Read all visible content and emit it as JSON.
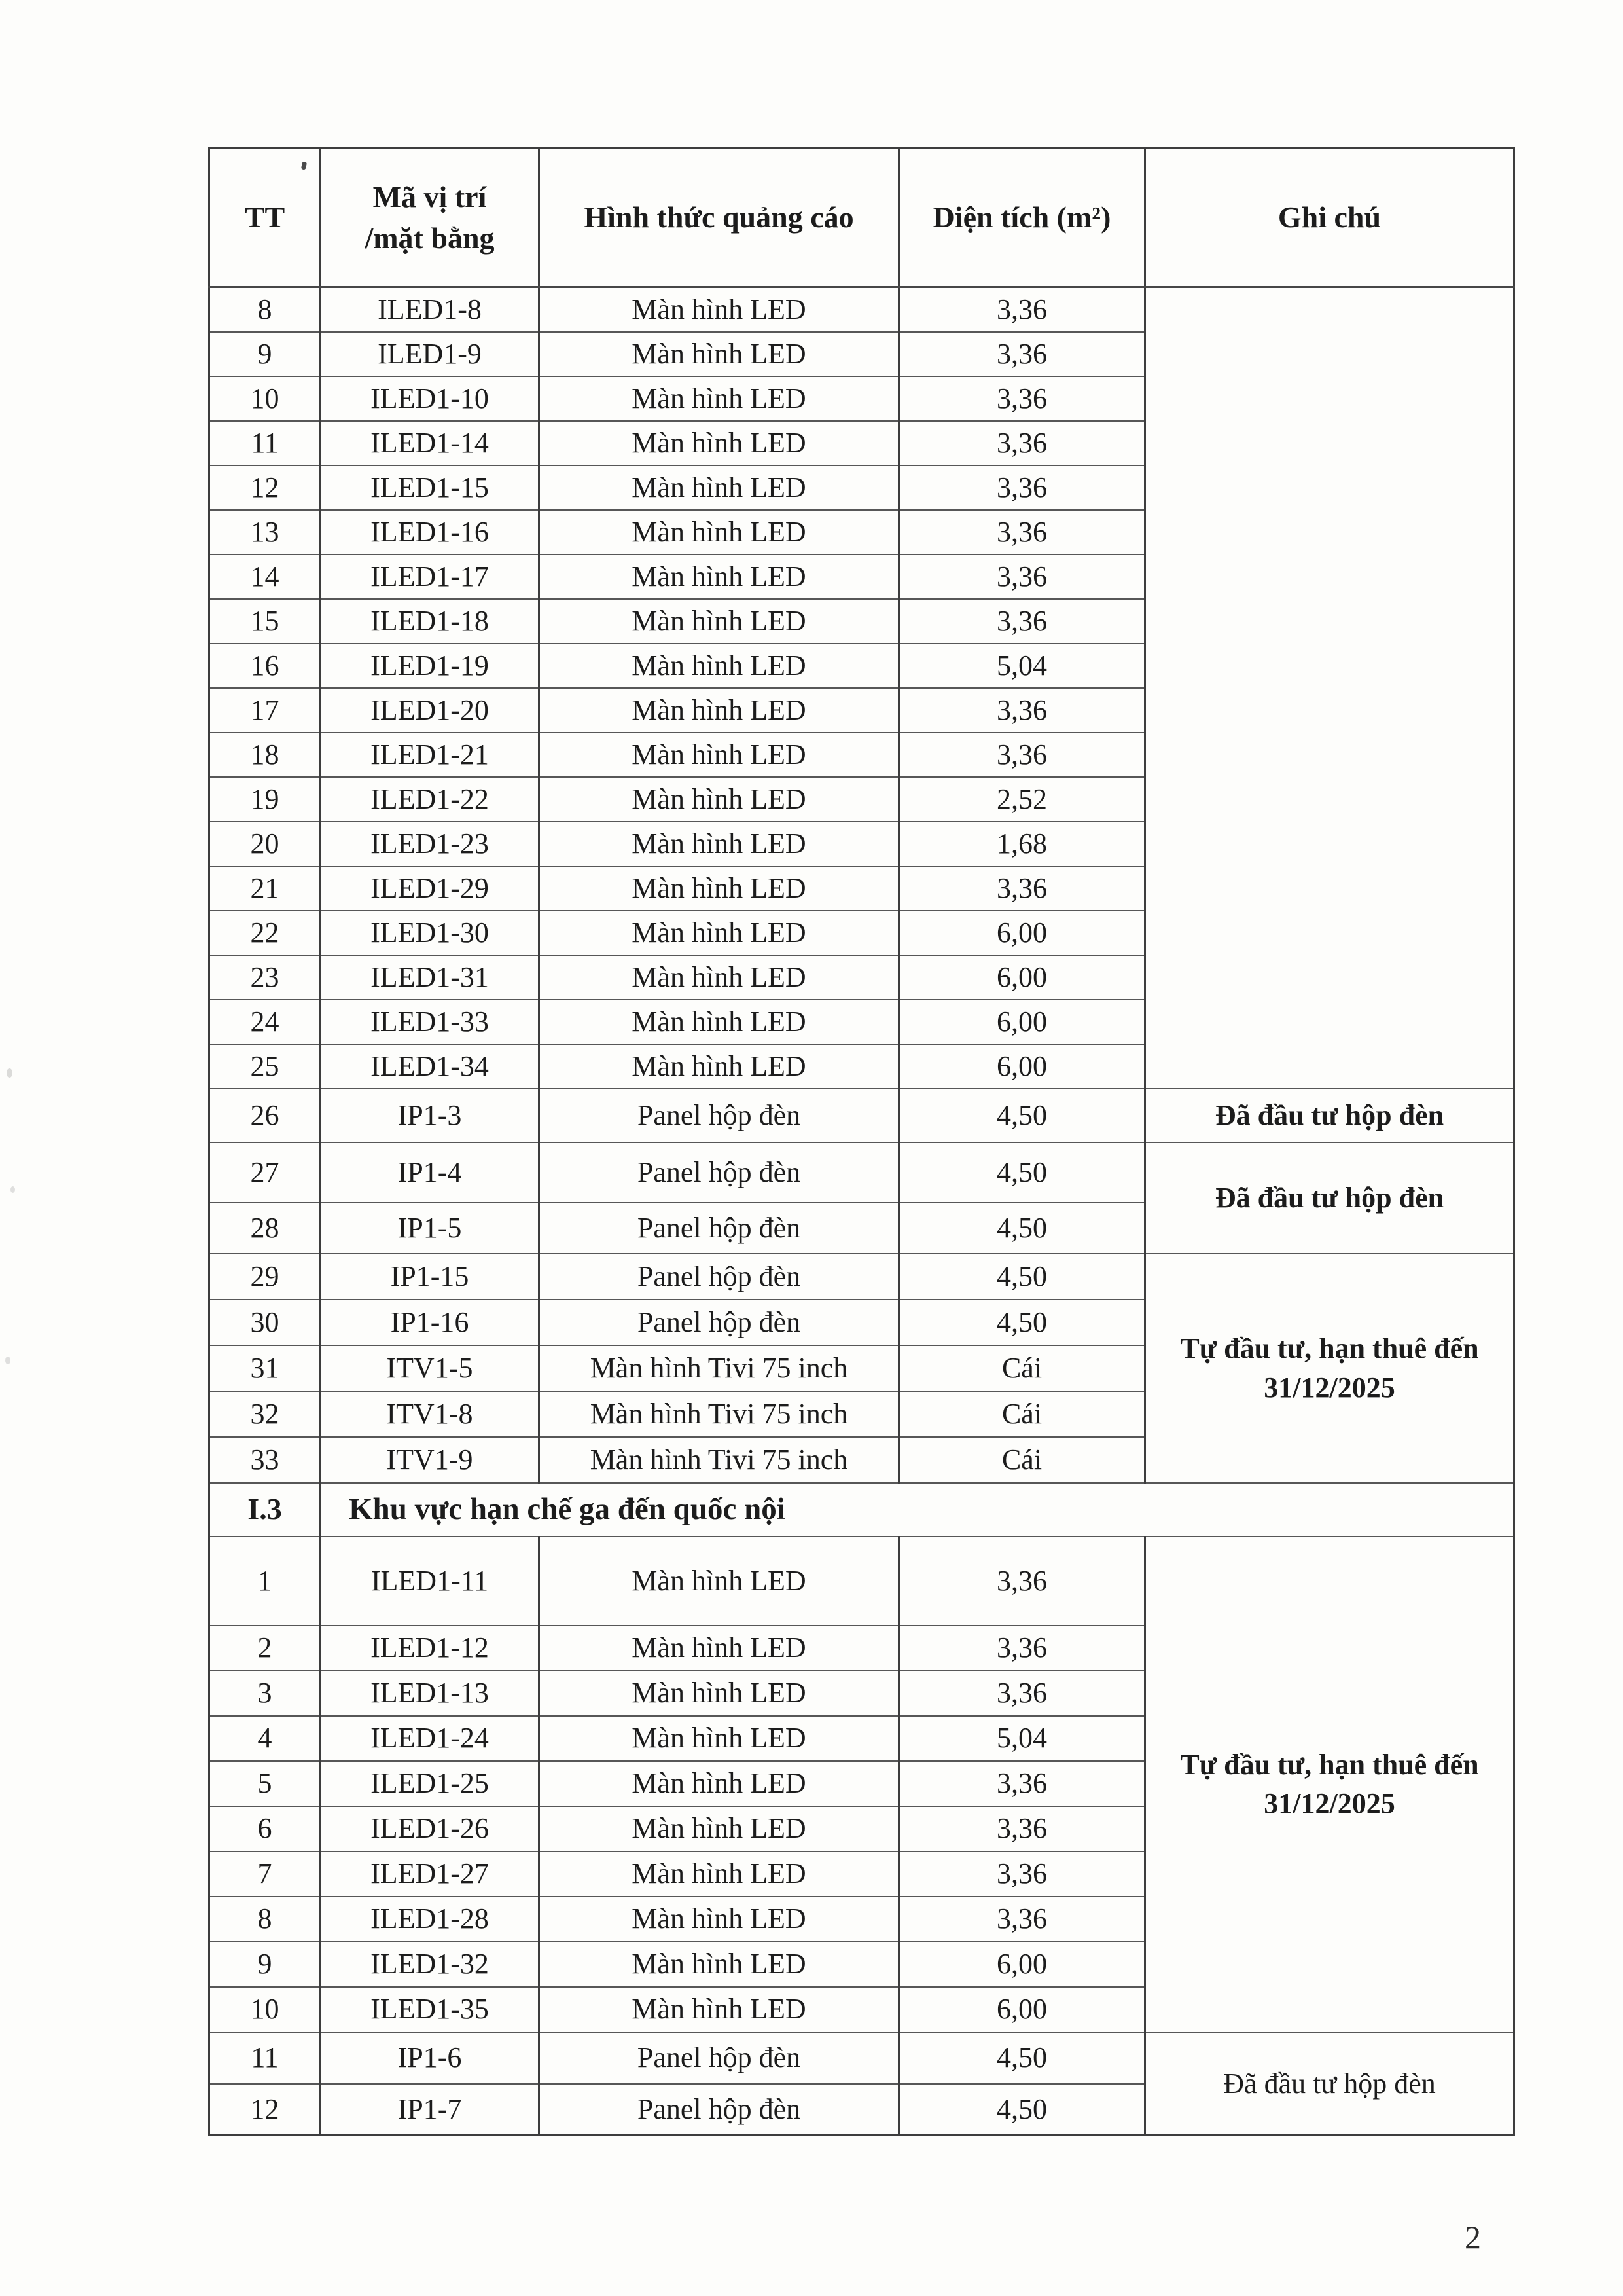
{
  "document": {
    "page_number": "2",
    "table": {
      "headers": {
        "tt": "TT",
        "code_line1": "Mã vị trí",
        "code_line2": "/mặt bằng",
        "form": "Hình thức quảng cáo",
        "area": "Diện tích (m²)",
        "note": "Ghi chú"
      },
      "sections": [
        {
          "rows": [
            {
              "tt": "8",
              "code": "ILED1-8",
              "form": "Màn hình LED",
              "area": "3,36"
            },
            {
              "tt": "9",
              "code": "ILED1-9",
              "form": "Màn hình LED",
              "area": "3,36"
            },
            {
              "tt": "10",
              "code": "ILED1-10",
              "form": "Màn hình LED",
              "area": "3,36"
            },
            {
              "tt": "11",
              "code": "ILED1-14",
              "form": "Màn hình LED",
              "area": "3,36"
            },
            {
              "tt": "12",
              "code": "ILED1-15",
              "form": "Màn hình LED",
              "area": "3,36"
            },
            {
              "tt": "13",
              "code": "ILED1-16",
              "form": "Màn hình LED",
              "area": "3,36"
            },
            {
              "tt": "14",
              "code": "ILED1-17",
              "form": "Màn hình LED",
              "area": "3,36"
            },
            {
              "tt": "15",
              "code": "ILED1-18",
              "form": "Màn hình LED",
              "area": "3,36"
            },
            {
              "tt": "16",
              "code": "ILED1-19",
              "form": "Màn hình LED",
              "area": "5,04"
            },
            {
              "tt": "17",
              "code": "ILED1-20",
              "form": "Màn hình LED",
              "area": "3,36"
            },
            {
              "tt": "18",
              "code": "ILED1-21",
              "form": "Màn hình LED",
              "area": "3,36"
            },
            {
              "tt": "19",
              "code": "ILED1-22",
              "form": "Màn hình LED",
              "area": "2,52"
            },
            {
              "tt": "20",
              "code": "ILED1-23",
              "form": "Màn hình LED",
              "area": "1,68"
            },
            {
              "tt": "21",
              "code": "ILED1-29",
              "form": "Màn hình LED",
              "area": "3,36"
            },
            {
              "tt": "22",
              "code": "ILED1-30",
              "form": "Màn hình LED",
              "area": "6,00"
            },
            {
              "tt": "23",
              "code": "ILED1-31",
              "form": "Màn hình LED",
              "area": "6,00"
            },
            {
              "tt": "24",
              "code": "ILED1-33",
              "form": "Màn hình LED",
              "area": "6,00"
            },
            {
              "tt": "25",
              "code": "ILED1-34",
              "form": "Màn hình LED",
              "area": "6,00"
            },
            {
              "tt": "26",
              "code": "IP1-3",
              "form": "Panel hộp đèn",
              "area": "4,50"
            },
            {
              "tt": "27",
              "code": "IP1-4",
              "form": "Panel hộp đèn",
              "area": "4,50"
            },
            {
              "tt": "28",
              "code": "IP1-5",
              "form": "Panel hộp đèn",
              "area": "4,50"
            },
            {
              "tt": "29",
              "code": "IP1-15",
              "form": "Panel hộp đèn",
              "area": "4,50"
            },
            {
              "tt": "30",
              "code": "IP1-16",
              "form": "Panel hộp đèn",
              "area": "4,50"
            },
            {
              "tt": "31",
              "code": "ITV1-5",
              "form": "Màn hình Tivi 75 inch",
              "area": "Cái"
            },
            {
              "tt": "32",
              "code": "ITV1-8",
              "form": "Màn hình Tivi 75 inch",
              "area": "Cái"
            },
            {
              "tt": "33",
              "code": "ITV1-9",
              "form": "Màn hình Tivi 75 inch",
              "area": "Cái"
            }
          ],
          "notes": [
            {
              "text": "",
              "from": 0,
              "span": 18,
              "bold": false
            },
            {
              "text": "Đã đầu tư hộp đèn",
              "from": 18,
              "span": 1,
              "bold": true
            },
            {
              "text": "Đã đầu tư hộp đèn",
              "from": 19,
              "span": 2,
              "bold": true
            },
            {
              "text": "Tự đầu tư, hạn thuê đến 31/12/2025",
              "from": 21,
              "span": 5,
              "bold": true
            }
          ]
        },
        {
          "header": {
            "id": "I.3",
            "title": "Khu vực hạn chế ga đến quốc nội"
          },
          "rows": [
            {
              "tt": "1",
              "code": "ILED1-11",
              "form": "Màn hình LED",
              "area": "3,36"
            },
            {
              "tt": "2",
              "code": "ILED1-12",
              "form": "Màn hình LED",
              "area": "3,36"
            },
            {
              "tt": "3",
              "code": "ILED1-13",
              "form": "Màn hình LED",
              "area": "3,36"
            },
            {
              "tt": "4",
              "code": "ILED1-24",
              "form": "Màn hình LED",
              "area": "5,04"
            },
            {
              "tt": "5",
              "code": "ILED1-25",
              "form": "Màn hình LED",
              "area": "3,36"
            },
            {
              "tt": "6",
              "code": "ILED1-26",
              "form": "Màn hình LED",
              "area": "3,36"
            },
            {
              "tt": "7",
              "code": "ILED1-27",
              "form": "Màn hình LED",
              "area": "3,36"
            },
            {
              "tt": "8",
              "code": "ILED1-28",
              "form": "Màn hình LED",
              "area": "3,36"
            },
            {
              "tt": "9",
              "code": "ILED1-32",
              "form": "Màn hình LED",
              "area": "6,00"
            },
            {
              "tt": "10",
              "code": "ILED1-35",
              "form": "Màn hình LED",
              "area": "6,00"
            },
            {
              "tt": "11",
              "code": "IP1-6",
              "form": "Panel hộp đèn",
              "area": "4,50"
            },
            {
              "tt": "12",
              "code": "IP1-7",
              "form": "Panel hộp đèn",
              "area": "4,50"
            }
          ],
          "notes": [
            {
              "text": "Tự đầu tư, hạn thuê đến 31/12/2025",
              "from": 0,
              "span": 10,
              "bold": true
            },
            {
              "text": "Đã đầu tư hộp đèn",
              "from": 10,
              "span": 2,
              "bold": false
            }
          ]
        }
      ]
    }
  }
}
